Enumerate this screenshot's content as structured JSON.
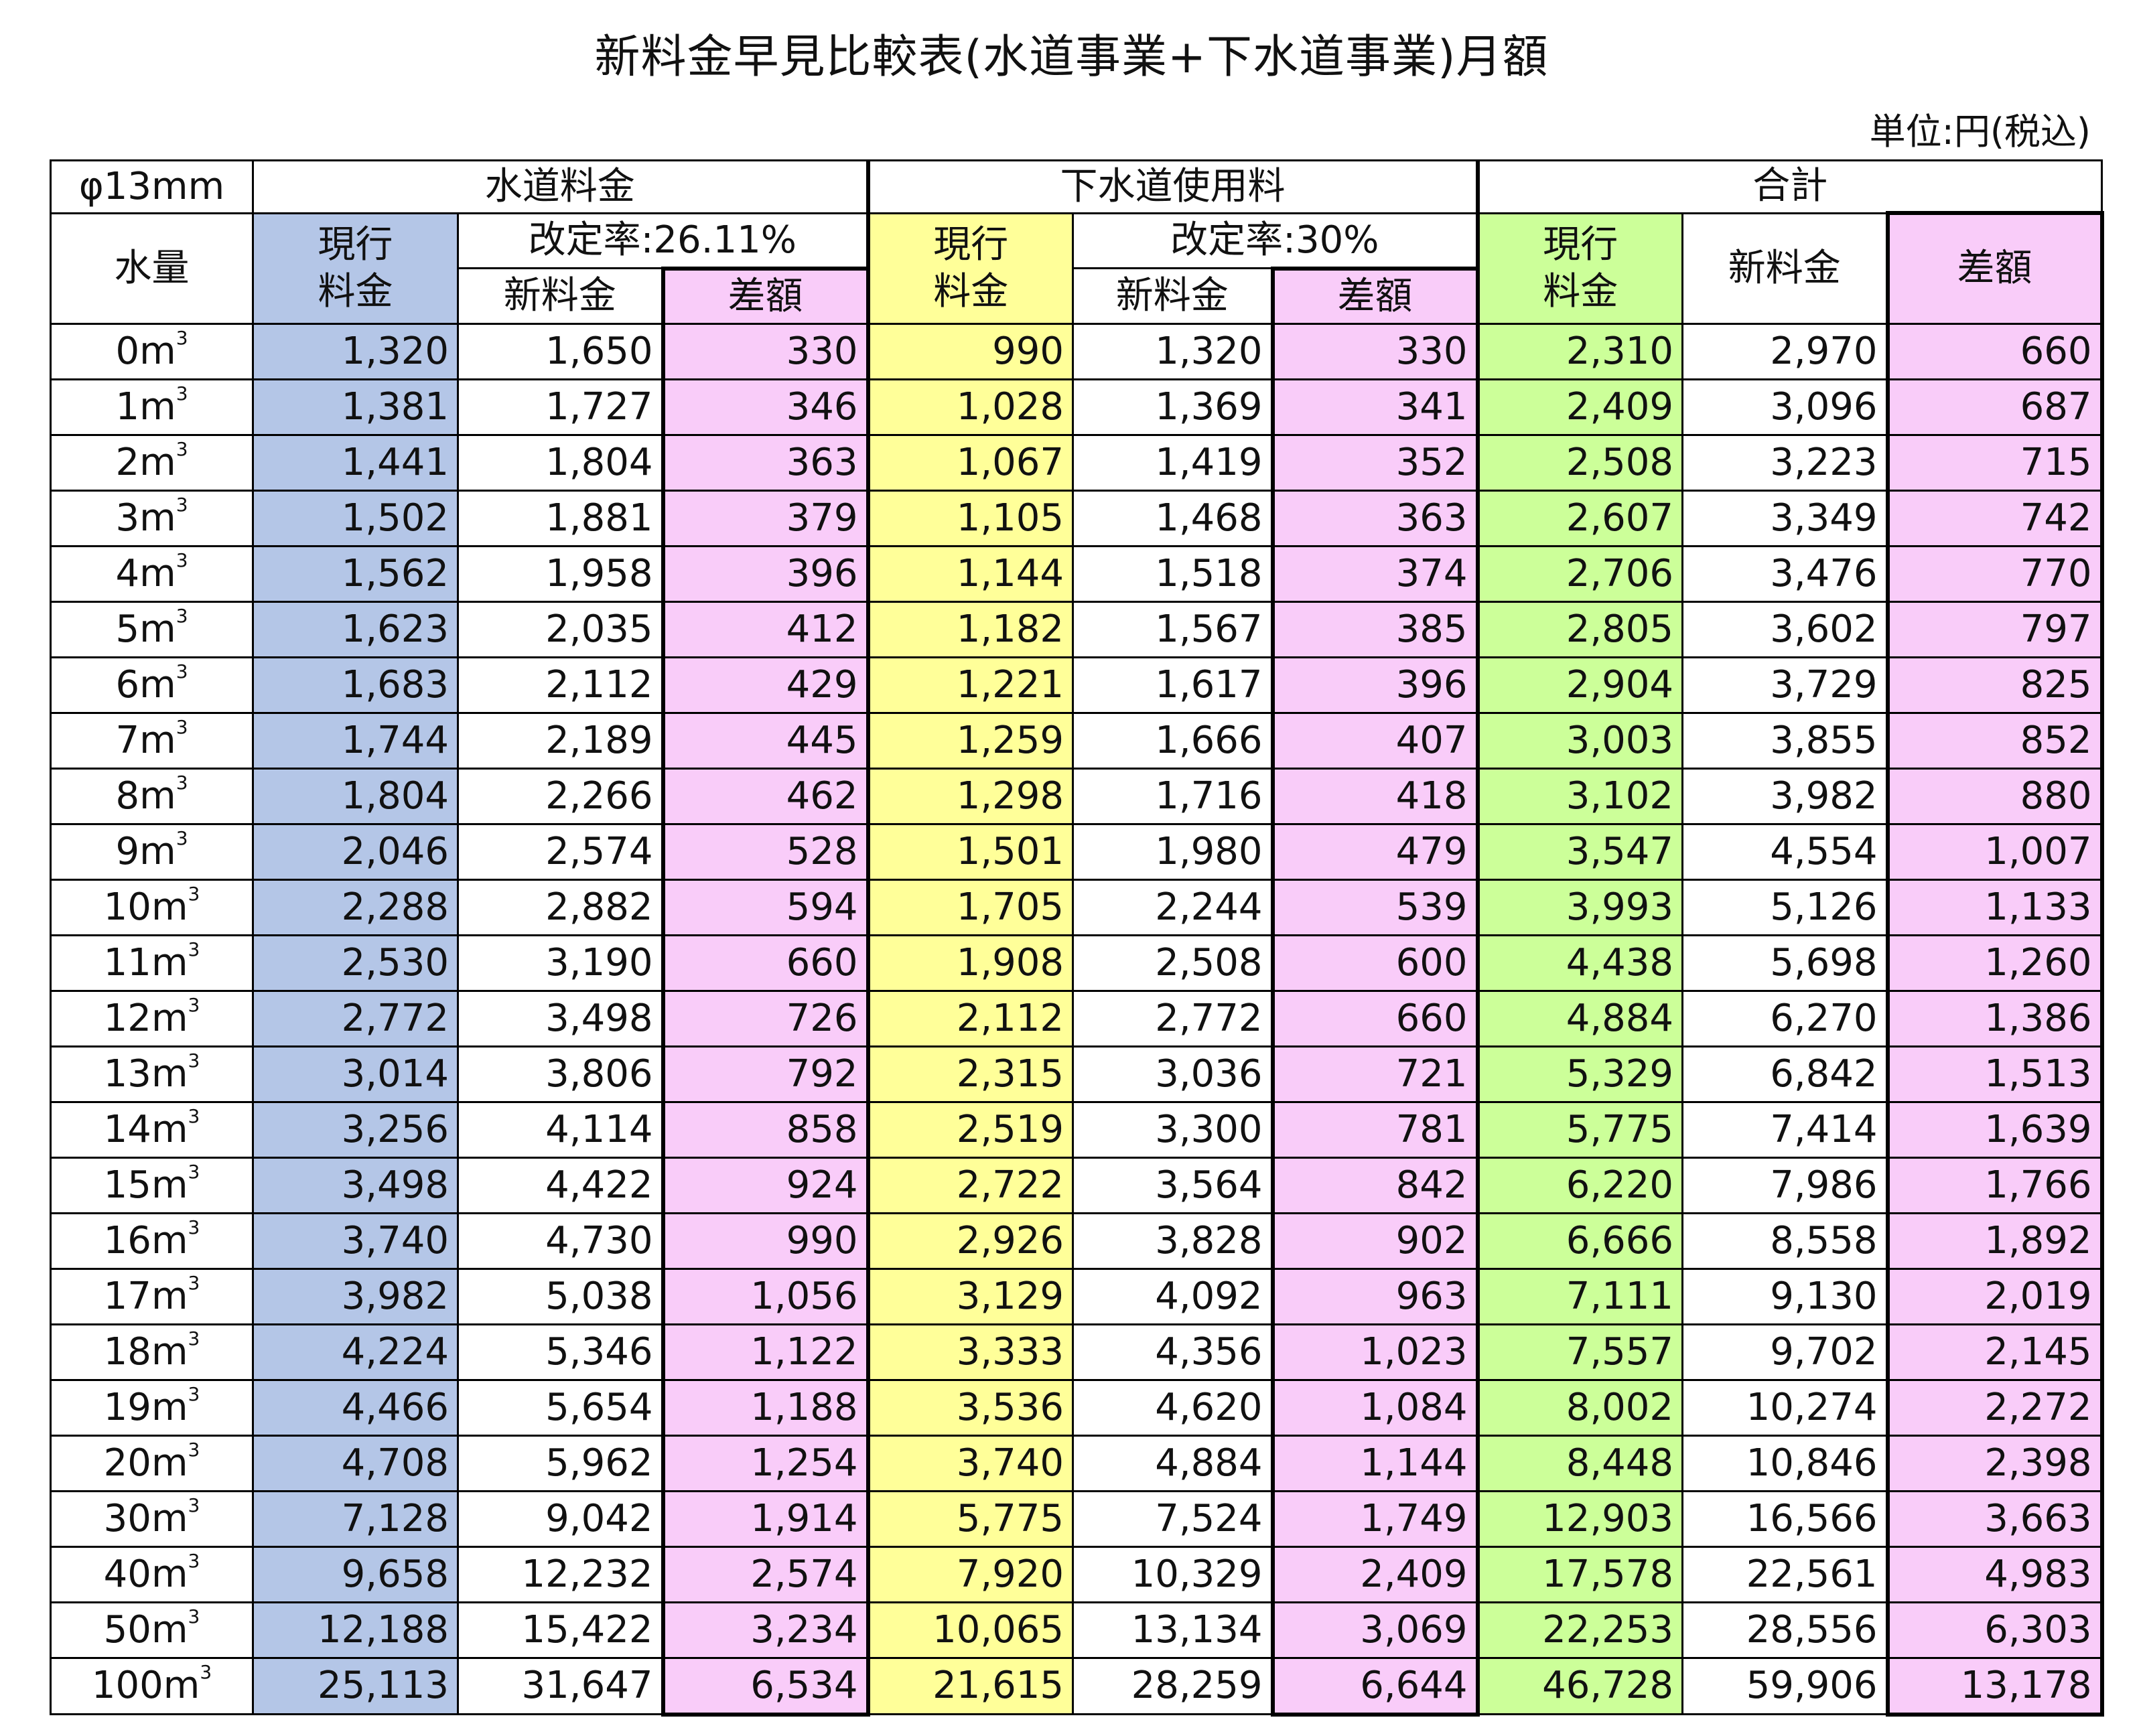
{
  "title": "新料金早見比較表(水道事業+下水道事業)月額",
  "unit_note": "単位:円(税込)",
  "header": {
    "diameter": "φ13mm",
    "water": "水道料金",
    "sewer": "下水道使用料",
    "total": "合計",
    "volume": "水量",
    "current_line1": "現行",
    "current_line2": "料金",
    "water_rate": "改定率:26.11%",
    "sewer_rate": "改定率:30%",
    "new_fee": "新料金",
    "difference": "差額"
  },
  "colors": {
    "current_water": "#b4c6e7",
    "current_sewer": "#ffff99",
    "current_total": "#ccff99",
    "difference": "#f9ccf9"
  },
  "rows": [
    {
      "vol": "0",
      "w": [
        "1,320",
        "1,650",
        "330"
      ],
      "s": [
        "990",
        "1,320",
        "330"
      ],
      "t": [
        "2,310",
        "2,970",
        "660"
      ]
    },
    {
      "vol": "1",
      "w": [
        "1,381",
        "1,727",
        "346"
      ],
      "s": [
        "1,028",
        "1,369",
        "341"
      ],
      "t": [
        "2,409",
        "3,096",
        "687"
      ]
    },
    {
      "vol": "2",
      "w": [
        "1,441",
        "1,804",
        "363"
      ],
      "s": [
        "1,067",
        "1,419",
        "352"
      ],
      "t": [
        "2,508",
        "3,223",
        "715"
      ]
    },
    {
      "vol": "3",
      "w": [
        "1,502",
        "1,881",
        "379"
      ],
      "s": [
        "1,105",
        "1,468",
        "363"
      ],
      "t": [
        "2,607",
        "3,349",
        "742"
      ]
    },
    {
      "vol": "4",
      "w": [
        "1,562",
        "1,958",
        "396"
      ],
      "s": [
        "1,144",
        "1,518",
        "374"
      ],
      "t": [
        "2,706",
        "3,476",
        "770"
      ]
    },
    {
      "vol": "5",
      "w": [
        "1,623",
        "2,035",
        "412"
      ],
      "s": [
        "1,182",
        "1,567",
        "385"
      ],
      "t": [
        "2,805",
        "3,602",
        "797"
      ]
    },
    {
      "vol": "6",
      "w": [
        "1,683",
        "2,112",
        "429"
      ],
      "s": [
        "1,221",
        "1,617",
        "396"
      ],
      "t": [
        "2,904",
        "3,729",
        "825"
      ]
    },
    {
      "vol": "7",
      "w": [
        "1,744",
        "2,189",
        "445"
      ],
      "s": [
        "1,259",
        "1,666",
        "407"
      ],
      "t": [
        "3,003",
        "3,855",
        "852"
      ]
    },
    {
      "vol": "8",
      "w": [
        "1,804",
        "2,266",
        "462"
      ],
      "s": [
        "1,298",
        "1,716",
        "418"
      ],
      "t": [
        "3,102",
        "3,982",
        "880"
      ]
    },
    {
      "vol": "9",
      "w": [
        "2,046",
        "2,574",
        "528"
      ],
      "s": [
        "1,501",
        "1,980",
        "479"
      ],
      "t": [
        "3,547",
        "4,554",
        "1,007"
      ]
    },
    {
      "vol": "10",
      "w": [
        "2,288",
        "2,882",
        "594"
      ],
      "s": [
        "1,705",
        "2,244",
        "539"
      ],
      "t": [
        "3,993",
        "5,126",
        "1,133"
      ]
    },
    {
      "vol": "11",
      "w": [
        "2,530",
        "3,190",
        "660"
      ],
      "s": [
        "1,908",
        "2,508",
        "600"
      ],
      "t": [
        "4,438",
        "5,698",
        "1,260"
      ]
    },
    {
      "vol": "12",
      "w": [
        "2,772",
        "3,498",
        "726"
      ],
      "s": [
        "2,112",
        "2,772",
        "660"
      ],
      "t": [
        "4,884",
        "6,270",
        "1,386"
      ]
    },
    {
      "vol": "13",
      "w": [
        "3,014",
        "3,806",
        "792"
      ],
      "s": [
        "2,315",
        "3,036",
        "721"
      ],
      "t": [
        "5,329",
        "6,842",
        "1,513"
      ]
    },
    {
      "vol": "14",
      "w": [
        "3,256",
        "4,114",
        "858"
      ],
      "s": [
        "2,519",
        "3,300",
        "781"
      ],
      "t": [
        "5,775",
        "7,414",
        "1,639"
      ]
    },
    {
      "vol": "15",
      "w": [
        "3,498",
        "4,422",
        "924"
      ],
      "s": [
        "2,722",
        "3,564",
        "842"
      ],
      "t": [
        "6,220",
        "7,986",
        "1,766"
      ]
    },
    {
      "vol": "16",
      "w": [
        "3,740",
        "4,730",
        "990"
      ],
      "s": [
        "2,926",
        "3,828",
        "902"
      ],
      "t": [
        "6,666",
        "8,558",
        "1,892"
      ]
    },
    {
      "vol": "17",
      "w": [
        "3,982",
        "5,038",
        "1,056"
      ],
      "s": [
        "3,129",
        "4,092",
        "963"
      ],
      "t": [
        "7,111",
        "9,130",
        "2,019"
      ]
    },
    {
      "vol": "18",
      "w": [
        "4,224",
        "5,346",
        "1,122"
      ],
      "s": [
        "3,333",
        "4,356",
        "1,023"
      ],
      "t": [
        "7,557",
        "9,702",
        "2,145"
      ]
    },
    {
      "vol": "19",
      "w": [
        "4,466",
        "5,654",
        "1,188"
      ],
      "s": [
        "3,536",
        "4,620",
        "1,084"
      ],
      "t": [
        "8,002",
        "10,274",
        "2,272"
      ]
    },
    {
      "vol": "20",
      "w": [
        "4,708",
        "5,962",
        "1,254"
      ],
      "s": [
        "3,740",
        "4,884",
        "1,144"
      ],
      "t": [
        "8,448",
        "10,846",
        "2,398"
      ]
    },
    {
      "vol": "30",
      "w": [
        "7,128",
        "9,042",
        "1,914"
      ],
      "s": [
        "5,775",
        "7,524",
        "1,749"
      ],
      "t": [
        "12,903",
        "16,566",
        "3,663"
      ]
    },
    {
      "vol": "40",
      "w": [
        "9,658",
        "12,232",
        "2,574"
      ],
      "s": [
        "7,920",
        "10,329",
        "2,409"
      ],
      "t": [
        "17,578",
        "22,561",
        "4,983"
      ]
    },
    {
      "vol": "50",
      "w": [
        "12,188",
        "15,422",
        "3,234"
      ],
      "s": [
        "10,065",
        "13,134",
        "3,069"
      ],
      "t": [
        "22,253",
        "28,556",
        "6,303"
      ]
    },
    {
      "vol": "100",
      "w": [
        "25,113",
        "31,647",
        "6,534"
      ],
      "s": [
        "21,615",
        "28,259",
        "6,644"
      ],
      "t": [
        "46,728",
        "59,906",
        "13,178"
      ]
    }
  ],
  "volume_unit": "m",
  "volume_unit_sup": "3"
}
